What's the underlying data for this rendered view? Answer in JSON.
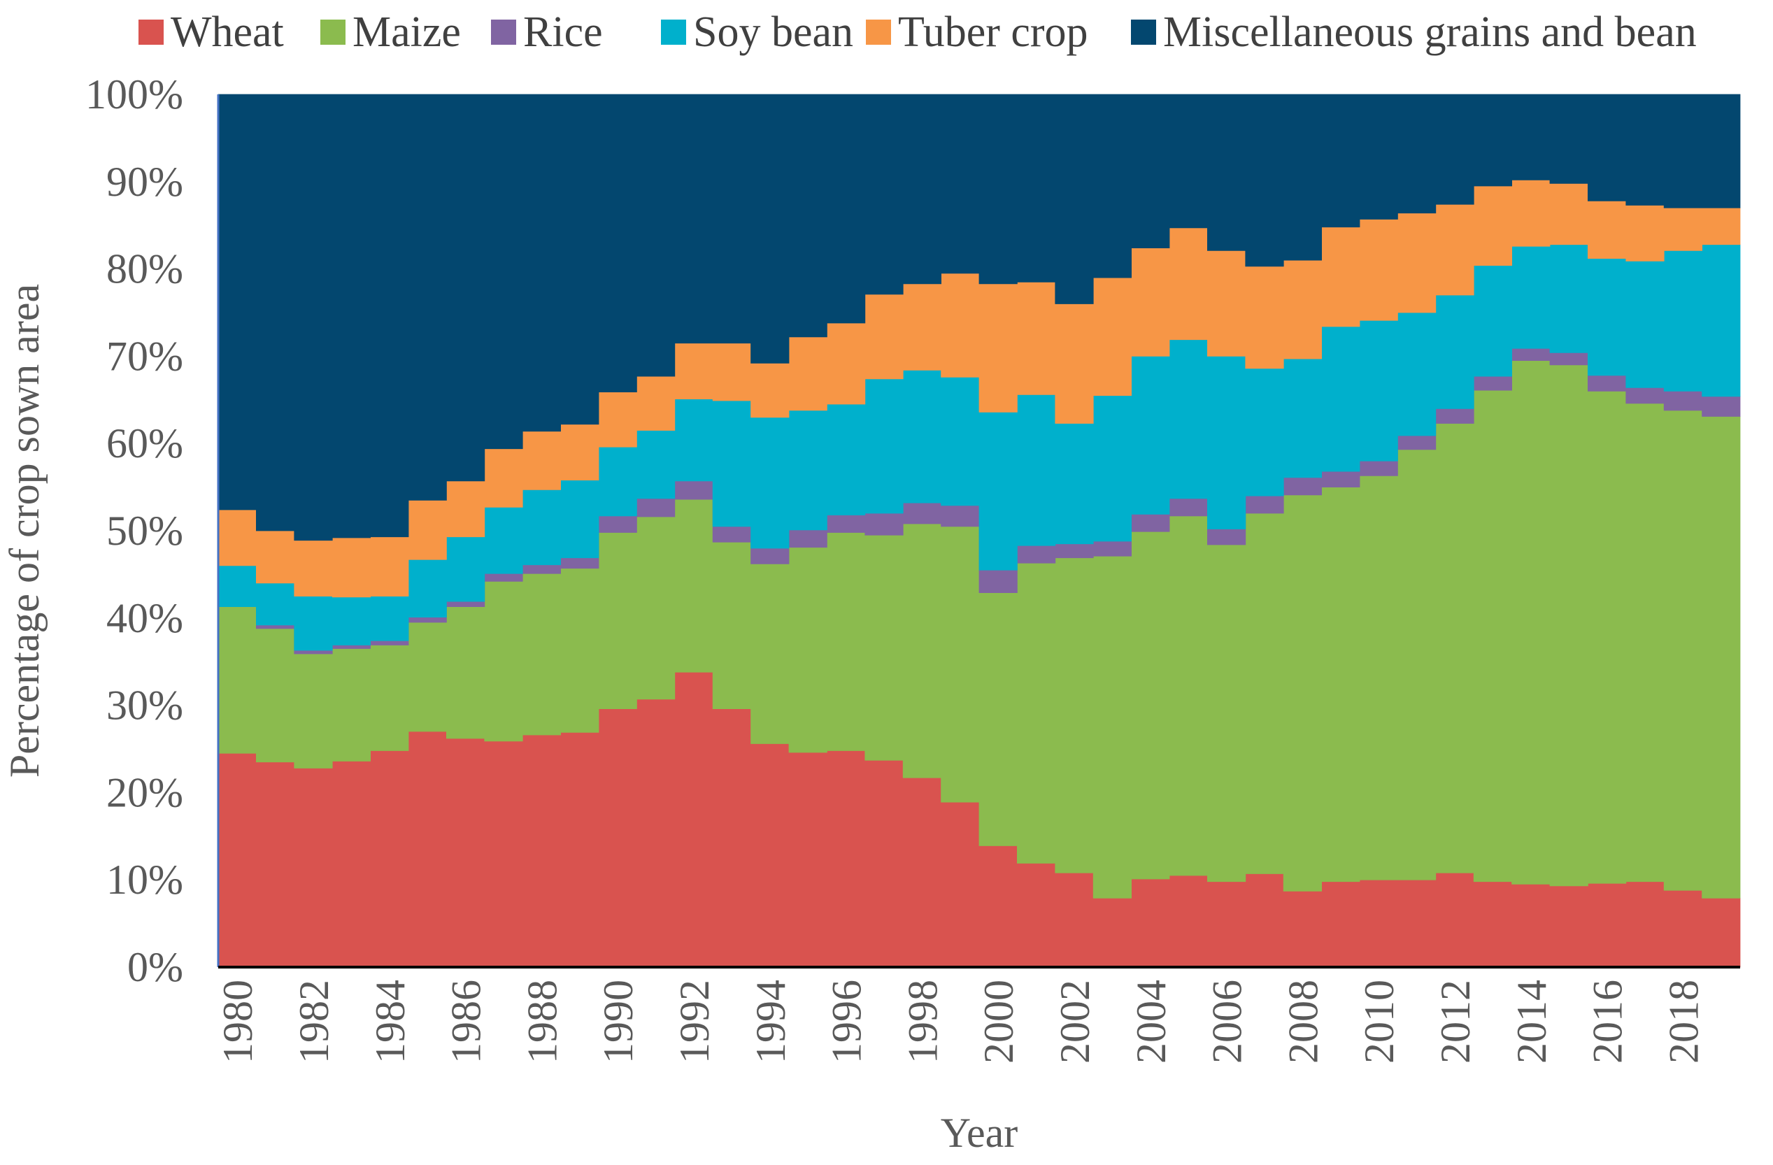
{
  "chart_data": {
    "type": "area",
    "title": "",
    "xlabel": "Year",
    "ylabel": "Percentage of crop sown area",
    "ylim": [
      0,
      100
    ],
    "y_ticks": [
      "0%",
      "10%",
      "20%",
      "30%",
      "40%",
      "50%",
      "60%",
      "70%",
      "80%",
      "90%",
      "100%"
    ],
    "x_tick_labels": [
      "1980",
      "1982",
      "1984",
      "1986",
      "1988",
      "1990",
      "1992",
      "1994",
      "1996",
      "1998",
      "2000",
      "2002",
      "2004",
      "2006",
      "2008",
      "2010",
      "2012",
      "2014",
      "2016",
      "2018"
    ],
    "legend_position": "top",
    "years": [
      1980,
      1981,
      1982,
      1983,
      1984,
      1985,
      1986,
      1987,
      1988,
      1989,
      1990,
      1991,
      1992,
      1993,
      1994,
      1995,
      1996,
      1997,
      1998,
      1999,
      2000,
      2001,
      2002,
      2003,
      2004,
      2005,
      2006,
      2007,
      2008,
      2009,
      2010,
      2011,
      2012,
      2013,
      2014,
      2015,
      2016,
      2017,
      2018,
      2019
    ],
    "series": [
      {
        "name": "Wheat",
        "color": "#d9534f",
        "values": [
          24.5,
          23.5,
          22.8,
          23.6,
          24.8,
          27.0,
          26.2,
          25.9,
          26.6,
          26.9,
          29.6,
          30.7,
          33.8,
          29.6,
          25.6,
          24.6,
          24.8,
          23.7,
          21.7,
          18.9,
          13.9,
          11.9,
          10.8,
          7.9,
          10.1,
          10.5,
          9.8,
          10.7,
          8.7,
          9.8,
          10.0,
          10.0,
          10.8,
          9.8,
          9.5,
          9.3,
          9.6,
          9.8,
          8.8,
          7.9
        ]
      },
      {
        "name": "Maize",
        "color": "#8bbb4e",
        "values": [
          16.8,
          15.3,
          13.1,
          12.9,
          12.1,
          12.5,
          15.1,
          18.3,
          18.5,
          18.8,
          20.2,
          20.9,
          19.8,
          19.1,
          20.6,
          23.5,
          25.0,
          25.8,
          29.1,
          31.6,
          29.0,
          34.4,
          36.1,
          39.2,
          39.8,
          41.2,
          38.6,
          41.3,
          45.4,
          45.2,
          46.3,
          49.3,
          51.5,
          56.3,
          60.0,
          59.7,
          56.4,
          54.8,
          55.0,
          55.2
        ]
      },
      {
        "name": "Rice",
        "color": "#8064a2",
        "values": [
          0,
          0.4,
          0.4,
          0.4,
          0.5,
          0.6,
          0.6,
          0.9,
          1.0,
          1.2,
          1.9,
          2.1,
          2.1,
          1.8,
          1.8,
          2.0,
          2.0,
          2.5,
          2.4,
          2.4,
          2.6,
          2.0,
          1.6,
          1.7,
          2.0,
          2.0,
          1.8,
          2.0,
          2.0,
          1.8,
          1.7,
          1.6,
          1.7,
          1.6,
          1.4,
          1.4,
          1.8,
          1.8,
          2.2,
          2.3
        ]
      },
      {
        "name": "Soy bean",
        "color": "#00b0cc",
        "values": [
          4.7,
          4.8,
          6.2,
          5.5,
          5.1,
          6.6,
          7.4,
          7.6,
          8.6,
          8.9,
          7.9,
          7.8,
          9.4,
          14.4,
          15.0,
          13.7,
          12.7,
          15.4,
          15.2,
          14.7,
          18.1,
          17.3,
          13.8,
          16.7,
          18.1,
          18.2,
          19.8,
          14.6,
          13.6,
          16.6,
          16.1,
          14.1,
          13.0,
          12.7,
          11.7,
          12.4,
          13.4,
          14.5,
          16.1,
          17.4
        ]
      },
      {
        "name": "Tuber crop",
        "color": "#f79646",
        "values": [
          6.4,
          6.0,
          6.4,
          6.8,
          6.8,
          6.8,
          6.4,
          6.7,
          6.7,
          6.4,
          6.3,
          6.2,
          6.4,
          6.6,
          6.2,
          8.4,
          9.3,
          9.7,
          9.9,
          11.9,
          14.7,
          12.9,
          13.7,
          13.5,
          12.4,
          12.8,
          12.1,
          11.7,
          11.3,
          11.4,
          11.6,
          11.4,
          10.4,
          9.1,
          7.6,
          7.0,
          6.6,
          6.4,
          4.9,
          4.2
        ]
      },
      {
        "name": "Miscellaneous grains and bean",
        "color": "#03476f",
        "values": [
          47.6,
          50.0,
          51.1,
          50.8,
          50.7,
          46.5,
          44.3,
          40.6,
          38.6,
          37.8,
          34.1,
          32.3,
          28.5,
          28.5,
          30.8,
          27.8,
          26.2,
          22.9,
          21.7,
          20.5,
          21.7,
          21.5,
          24.0,
          21.0,
          17.6,
          15.3,
          17.9,
          19.7,
          19.0,
          15.2,
          14.3,
          13.6,
          12.6,
          10.5,
          9.8,
          10.2,
          12.2,
          12.7,
          13.0,
          13.0
        ]
      }
    ]
  }
}
